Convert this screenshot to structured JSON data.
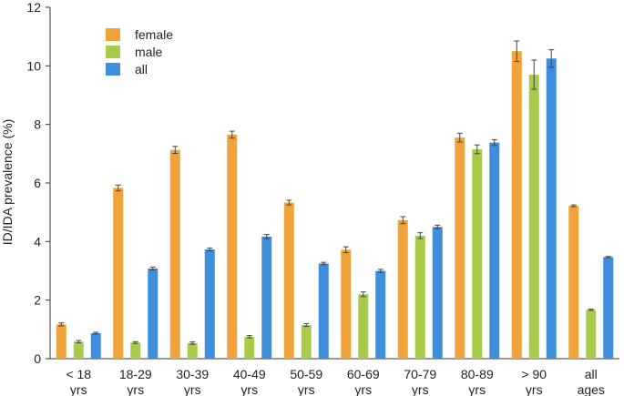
{
  "chart_data": {
    "type": "bar",
    "ylabel": "ID/IDA prevalence (%)",
    "xlabel": "",
    "ylim": [
      0,
      12
    ],
    "yticks": [
      0,
      2,
      4,
      6,
      8,
      10,
      12
    ],
    "grid": false,
    "legend_position": "top-left",
    "categories": [
      [
        "< 18",
        "yrs"
      ],
      [
        "18-29",
        "yrs"
      ],
      [
        "30-39",
        "yrs"
      ],
      [
        "40-49",
        "yrs"
      ],
      [
        "50-59",
        "yrs"
      ],
      [
        "60-69",
        "yrs"
      ],
      [
        "70-79",
        "yrs"
      ],
      [
        "80-89",
        "yrs"
      ],
      [
        "> 90",
        "yrs"
      ],
      [
        "all",
        "ages"
      ]
    ],
    "series": [
      {
        "name": "female",
        "color": "#F0A33A",
        "values": [
          1.17,
          5.83,
          7.13,
          7.65,
          5.33,
          3.72,
          4.73,
          7.55,
          10.5,
          5.22
        ],
        "errors": [
          0.05,
          0.1,
          0.12,
          0.12,
          0.08,
          0.1,
          0.12,
          0.15,
          0.35,
          0.03
        ]
      },
      {
        "name": "male",
        "color": "#A8CC4A",
        "values": [
          0.58,
          0.55,
          0.53,
          0.75,
          1.15,
          2.2,
          4.2,
          7.15,
          9.7,
          1.67
        ],
        "errors": [
          0.04,
          0.03,
          0.04,
          0.04,
          0.05,
          0.08,
          0.1,
          0.15,
          0.5,
          0.02
        ]
      },
      {
        "name": "all",
        "color": "#3F8EDB",
        "values": [
          0.87,
          3.08,
          3.73,
          4.17,
          3.25,
          3.0,
          4.5,
          7.38,
          10.25,
          3.47
        ],
        "errors": [
          0.03,
          0.05,
          0.05,
          0.07,
          0.04,
          0.05,
          0.06,
          0.1,
          0.3,
          0.02
        ]
      }
    ]
  }
}
